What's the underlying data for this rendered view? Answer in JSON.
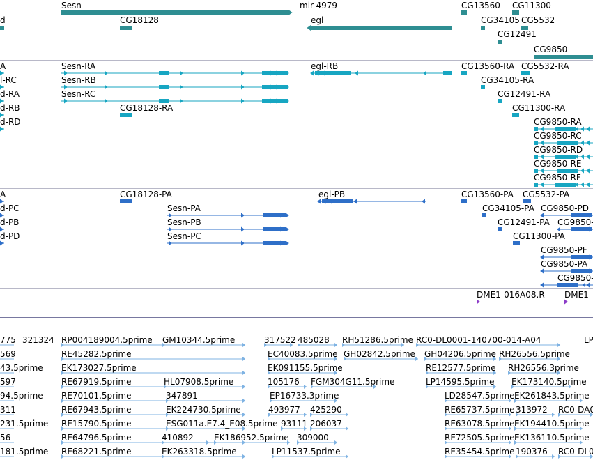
{
  "colors": {
    "gene": "#2e8e92",
    "transcript": "#17a6c2",
    "protein": "#2e6fc8",
    "marker": "#8c3cc8",
    "est": "#7fb3e3",
    "separator": "#b8b8c8"
  },
  "tracks": {
    "genes": {
      "labels": [
        "Sesn",
        "mir-4979",
        "CG13560",
        "CG11300",
        "d",
        "CG18128",
        "egl",
        "CG34105",
        "CG5532",
        "CG12491",
        "CG9850"
      ]
    },
    "transcripts": {
      "labels": [
        "A",
        "Sesn-RA",
        "egl-RB",
        "CG13560-RA",
        "CG5532-RA",
        "l-RC",
        "Sesn-RB",
        "CG34105-RA",
        "d-RA",
        "Sesn-RC",
        "CG12491-RA",
        "d-RB",
        "CG18128-RA",
        "CG11300-RA",
        "d-RD",
        "CG9850-RA",
        "CG9850-RC",
        "CG9850-RD",
        "CG9850-RE",
        "CG9850-RF"
      ]
    },
    "proteins": {
      "labels": [
        "A",
        "CG18128-PA",
        "egl-PB",
        "CG13560-PA",
        "CG5532-PA",
        "d-PC",
        "Sesn-PA",
        "CG34105-PA",
        "CG9850-PD",
        "d-PB",
        "Sesn-PB",
        "CG12491-PA",
        "CG9850-",
        "d-PD",
        "Sesn-PC",
        "CG11300-PA",
        "CG9850-PF",
        "CG9850-PA",
        "CG9850-"
      ]
    },
    "markers": {
      "labels": [
        "DME1-016A08.R",
        "DME1-"
      ]
    },
    "ests": {
      "labels": [
        "775",
        "321324",
        "RP004189004.5prime",
        "GM10344.5prime",
        "317522",
        "485028",
        "RH51286.5prime",
        "RC0-DL0001-140700-014-A04",
        "LP",
        "569",
        "RE45282.5prime",
        "EC40083.5prime",
        "GH02842.5prime",
        "GH04206.5prime",
        "RH26556.5prime",
        "43.5prime",
        "EK173027.5prime",
        "EK091155.5prime",
        "RE12577.5prime",
        "RH26556.3prime",
        "597",
        "RE67919.5prime",
        "HL07908.5prime",
        "105176",
        "FGM304G11.5prime",
        "LP14595.5prime",
        "EK173140.5prime",
        "94.5prime",
        "RE70101.5prime",
        "347891",
        "EP16733.3prime",
        "LD28547.5prime",
        "EK261843.5prime",
        "311",
        "RE67943.5prime",
        "EK224730.5prime",
        "493977",
        "425290",
        "RE65737.5prime",
        "313972",
        "RC0-DA0",
        "231.5prime",
        "RE15790.5prime",
        "ESG011a.E7.4_E08.5prime",
        "93111",
        "206037",
        "RE63078.5prime",
        "EK194410.5prime",
        "56",
        "RE64796.5prime",
        "410892",
        "EK186952.5prime",
        "309000",
        "RE72505.5prime",
        "EK136110.5prime",
        "181.5prime",
        "RE68221.5prime",
        "EK263318.5prime",
        "LP11537.5prime",
        "RE35454.5prime",
        "190376",
        "RC0-DL0"
      ]
    }
  }
}
